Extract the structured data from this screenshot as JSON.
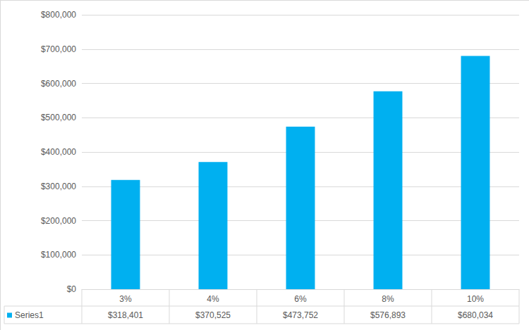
{
  "chart_data": {
    "type": "bar",
    "categories": [
      "3%",
      "4%",
      "6%",
      "8%",
      "10%"
    ],
    "series": [
      {
        "name": "Series1",
        "color": "#00b0f0",
        "values": [
          318401,
          370525,
          473752,
          576893,
          680034
        ],
        "value_labels": [
          "$318,401",
          "$370,525",
          "$473,752",
          "$576,893",
          "$680,034"
        ]
      }
    ],
    "ylim": [
      0,
      800000
    ],
    "yticks": [
      {
        "value": 0,
        "label": "$0"
      },
      {
        "value": 100000,
        "label": "$100,000"
      },
      {
        "value": 200000,
        "label": "$200,000"
      },
      {
        "value": 300000,
        "label": "$300,000"
      },
      {
        "value": 400000,
        "label": "$400,000"
      },
      {
        "value": 500000,
        "label": "$500,000"
      },
      {
        "value": 600000,
        "label": "$600,000"
      },
      {
        "value": 700000,
        "label": "$700,000"
      },
      {
        "value": 800000,
        "label": "$800,000"
      }
    ],
    "grid": true
  }
}
